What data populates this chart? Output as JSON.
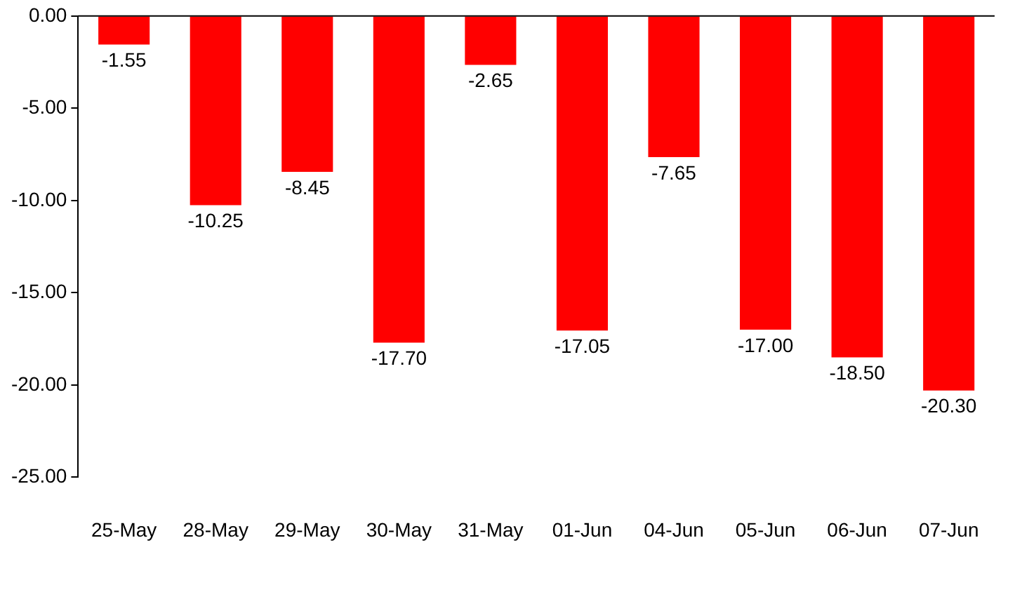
{
  "chart_data": {
    "type": "bar",
    "categories": [
      "25-May",
      "28-May",
      "29-May",
      "30-May",
      "31-May",
      "01-Jun",
      "04-Jun",
      "05-Jun",
      "06-Jun",
      "07-Jun"
    ],
    "values": [
      -1.55,
      -10.25,
      -8.45,
      -17.7,
      -2.65,
      -17.05,
      -7.65,
      -17.0,
      -18.5,
      -20.3
    ],
    "value_labels": [
      "-1.55",
      "-10.25",
      "-8.45",
      "-17.70",
      "-2.65",
      "-17.05",
      "-7.65",
      "-17.00",
      "-18.50",
      "-20.30"
    ],
    "color": "#ff0000",
    "ylim": [
      -25,
      0
    ],
    "yticks": [
      {
        "value": 0,
        "label": "0.00"
      },
      {
        "value": -5,
        "label": "-5.00"
      },
      {
        "value": -10,
        "label": "-10.00"
      },
      {
        "value": -15,
        "label": "-15.00"
      },
      {
        "value": -20,
        "label": "-20.00"
      },
      {
        "value": -25,
        "label": "-25.00"
      }
    ],
    "grid": false,
    "legend": false
  }
}
